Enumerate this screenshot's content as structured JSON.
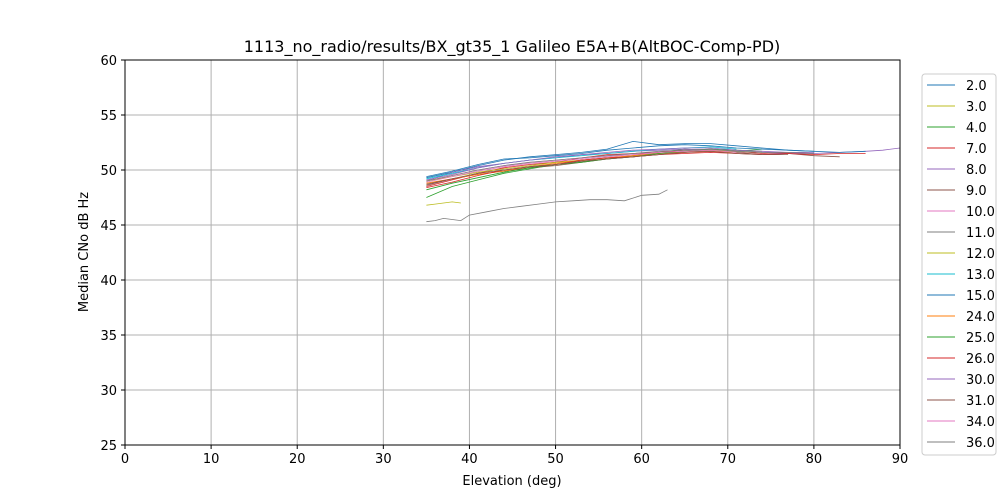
{
  "chart_data": {
    "type": "line",
    "title": "1113_no_radio/results/BX_gt35_1 Galileo E5A+B(AltBOC-Comp-PD)",
    "xlabel": "Elevation (deg)",
    "ylabel": "Median CNo dB Hz",
    "xlim": [
      0,
      90
    ],
    "ylim": [
      25,
      60
    ],
    "xticks": [
      0,
      10,
      20,
      30,
      40,
      50,
      60,
      70,
      80,
      90
    ],
    "yticks": [
      25,
      30,
      35,
      40,
      45,
      50,
      55,
      60
    ],
    "grid": true,
    "legend_position": "right",
    "series": [
      {
        "name": "2.0",
        "color": "#1f77b4",
        "x": [
          35,
          38,
          41,
          44,
          47,
          50,
          53,
          56,
          59,
          62,
          65,
          68,
          71,
          74,
          77,
          80
        ],
        "y": [
          49.3,
          49.8,
          50.4,
          50.9,
          51.2,
          51.4,
          51.6,
          51.9,
          52.6,
          52.3,
          52.4,
          52.4,
          52.2,
          52.0,
          51.8,
          51.7
        ]
      },
      {
        "name": "3.0",
        "color": "#bcbd22",
        "x": [
          35,
          36,
          37,
          38,
          39
        ],
        "y": [
          46.8,
          46.9,
          47.0,
          47.1,
          47.0
        ]
      },
      {
        "name": "4.0",
        "color": "#2ca02c",
        "x": [
          35,
          38,
          41,
          44,
          47,
          50,
          53,
          56,
          59,
          62,
          65,
          68,
          71,
          74
        ],
        "y": [
          47.5,
          48.5,
          49.1,
          49.7,
          50.1,
          50.5,
          50.8,
          51.0,
          51.3,
          51.6,
          51.9,
          51.8,
          51.7,
          51.9
        ]
      },
      {
        "name": "7.0",
        "color": "#d62728",
        "x": [
          35,
          38,
          41,
          44,
          47,
          50,
          53,
          56,
          59,
          62,
          65,
          68,
          71,
          74,
          77,
          80
        ],
        "y": [
          48.5,
          49.1,
          49.7,
          50.2,
          50.5,
          50.7,
          51.1,
          51.4,
          51.5,
          51.6,
          51.8,
          51.9,
          51.7,
          51.5,
          51.6,
          51.5
        ]
      },
      {
        "name": "8.0",
        "color": "#9467bd",
        "x": [
          35,
          38,
          41,
          44,
          47,
          50,
          53,
          56,
          59,
          62,
          65,
          68,
          71,
          74,
          77,
          80,
          83,
          86,
          88,
          90
        ],
        "y": [
          49.0,
          49.8,
          50.3,
          50.6,
          50.9,
          51.1,
          51.4,
          51.5,
          51.7,
          51.8,
          51.9,
          51.8,
          51.7,
          51.6,
          51.5,
          51.5,
          51.6,
          51.7,
          51.8,
          52.0
        ]
      },
      {
        "name": "9.0",
        "color": "#8c564b",
        "x": [
          35,
          38,
          41,
          44,
          47,
          50,
          53,
          56,
          59,
          62,
          65,
          68,
          71,
          74,
          77,
          80,
          83
        ],
        "y": [
          48.6,
          49.2,
          49.6,
          49.9,
          50.2,
          50.4,
          50.7,
          51.0,
          51.2,
          51.4,
          51.6,
          51.8,
          51.6,
          51.4,
          51.5,
          51.3,
          51.2
        ]
      },
      {
        "name": "10.0",
        "color": "#e377c2",
        "x": [
          35,
          38,
          41,
          44,
          47,
          50,
          53,
          56,
          59,
          62,
          65
        ],
        "y": [
          49.0,
          49.5,
          50.0,
          50.4,
          50.7,
          50.9,
          51.1,
          51.3,
          51.4,
          51.5,
          51.6
        ]
      },
      {
        "name": "11.0",
        "color": "#7f7f7f",
        "x": [
          35,
          36,
          37,
          38,
          39,
          40,
          42,
          44,
          46,
          48,
          50,
          52,
          54,
          56,
          58,
          60,
          62,
          63
        ],
        "y": [
          45.3,
          45.4,
          45.6,
          45.5,
          45.4,
          45.9,
          46.2,
          46.5,
          46.7,
          46.9,
          47.1,
          47.2,
          47.3,
          47.3,
          47.2,
          47.7,
          47.8,
          48.2
        ]
      },
      {
        "name": "12.0",
        "color": "#bcbd22",
        "x": [
          35,
          38,
          41,
          44,
          47,
          50,
          53,
          56,
          59,
          62,
          65,
          68,
          71,
          74
        ],
        "y": [
          49.0,
          49.4,
          49.8,
          50.1,
          50.4,
          50.7,
          50.9,
          51.1,
          51.3,
          51.5,
          51.7,
          51.8,
          51.7,
          51.6
        ]
      },
      {
        "name": "13.0",
        "color": "#17becf",
        "x": [
          35,
          38,
          41,
          44,
          47,
          50,
          53,
          56,
          59,
          62,
          65,
          68,
          71
        ],
        "y": [
          49.2,
          49.7,
          50.2,
          50.6,
          50.9,
          51.1,
          51.3,
          51.5,
          51.7,
          51.9,
          52.0,
          52.1,
          51.9
        ]
      },
      {
        "name": "15.0",
        "color": "#1f77b4",
        "x": [
          35,
          38,
          41,
          44,
          47,
          50,
          53,
          56,
          59,
          62,
          65,
          68,
          71,
          74,
          77,
          80,
          83,
          86
        ],
        "y": [
          49.4,
          49.9,
          50.5,
          51.0,
          51.1,
          51.3,
          51.5,
          51.8,
          52.0,
          52.2,
          52.3,
          52.2,
          52.0,
          51.9,
          51.8,
          51.7,
          51.6,
          51.7
        ]
      },
      {
        "name": "24.0",
        "color": "#ff7f0e",
        "x": [
          35,
          38,
          41,
          44,
          47,
          50,
          53,
          56,
          59,
          62,
          65,
          68,
          71
        ],
        "y": [
          48.8,
          49.2,
          49.6,
          49.9,
          50.3,
          50.6,
          50.9,
          51.1,
          51.3,
          51.5,
          51.6,
          51.7,
          51.6
        ]
      },
      {
        "name": "25.0",
        "color": "#2ca02c",
        "x": [
          35,
          38,
          41,
          44,
          47,
          50,
          53,
          56,
          59,
          62,
          65,
          68,
          71,
          74
        ],
        "y": [
          48.2,
          48.8,
          49.3,
          49.8,
          50.2,
          50.5,
          50.7,
          51.0,
          51.2,
          51.5,
          51.7,
          51.9,
          51.8,
          51.7
        ]
      },
      {
        "name": "26.0",
        "color": "#d62728",
        "x": [
          35,
          38,
          41,
          44,
          47,
          50,
          53,
          56,
          59,
          62,
          65,
          68,
          71,
          74,
          77,
          80,
          83,
          86
        ],
        "y": [
          48.4,
          48.9,
          49.5,
          50.0,
          50.3,
          50.5,
          50.9,
          51.1,
          51.2,
          51.4,
          51.5,
          51.6,
          51.5,
          51.4,
          51.5,
          51.4,
          51.5,
          51.5
        ]
      },
      {
        "name": "30.0",
        "color": "#9467bd",
        "x": [
          35,
          38,
          41,
          44,
          47,
          50,
          53,
          56,
          59,
          62,
          65,
          68,
          71,
          74,
          77,
          80
        ],
        "y": [
          49.1,
          49.6,
          50.2,
          50.6,
          50.9,
          51.2,
          51.4,
          51.6,
          51.8,
          51.9,
          52.0,
          52.0,
          51.8,
          51.7,
          51.6,
          51.6
        ]
      },
      {
        "name": "31.0",
        "color": "#8c564b",
        "x": [
          35,
          38,
          41,
          44,
          47,
          50,
          53,
          56,
          59,
          62,
          65,
          68,
          71,
          74,
          77
        ],
        "y": [
          48.7,
          49.2,
          49.7,
          50.0,
          50.3,
          50.5,
          50.8,
          51.0,
          51.2,
          51.4,
          51.6,
          51.7,
          51.5,
          51.4,
          51.4
        ]
      },
      {
        "name": "34.0",
        "color": "#e377c2",
        "x": [
          35,
          38,
          41,
          44,
          47,
          50,
          53,
          56,
          59,
          62,
          65,
          68,
          71
        ],
        "y": [
          48.9,
          49.4,
          49.9,
          50.3,
          50.6,
          50.8,
          51.0,
          51.2,
          51.4,
          51.6,
          51.7,
          51.8,
          51.6
        ]
      },
      {
        "name": "36.0",
        "color": "#7f7f7f",
        "x": [
          35,
          38,
          41,
          44,
          47,
          50,
          53,
          56,
          59,
          62,
          65,
          68,
          71,
          74,
          77,
          80
        ],
        "y": [
          49.0,
          49.5,
          50.0,
          50.4,
          50.7,
          50.9,
          51.1,
          51.3,
          51.5,
          51.7,
          51.8,
          51.9,
          51.7,
          51.6,
          51.6,
          51.5
        ]
      }
    ]
  }
}
